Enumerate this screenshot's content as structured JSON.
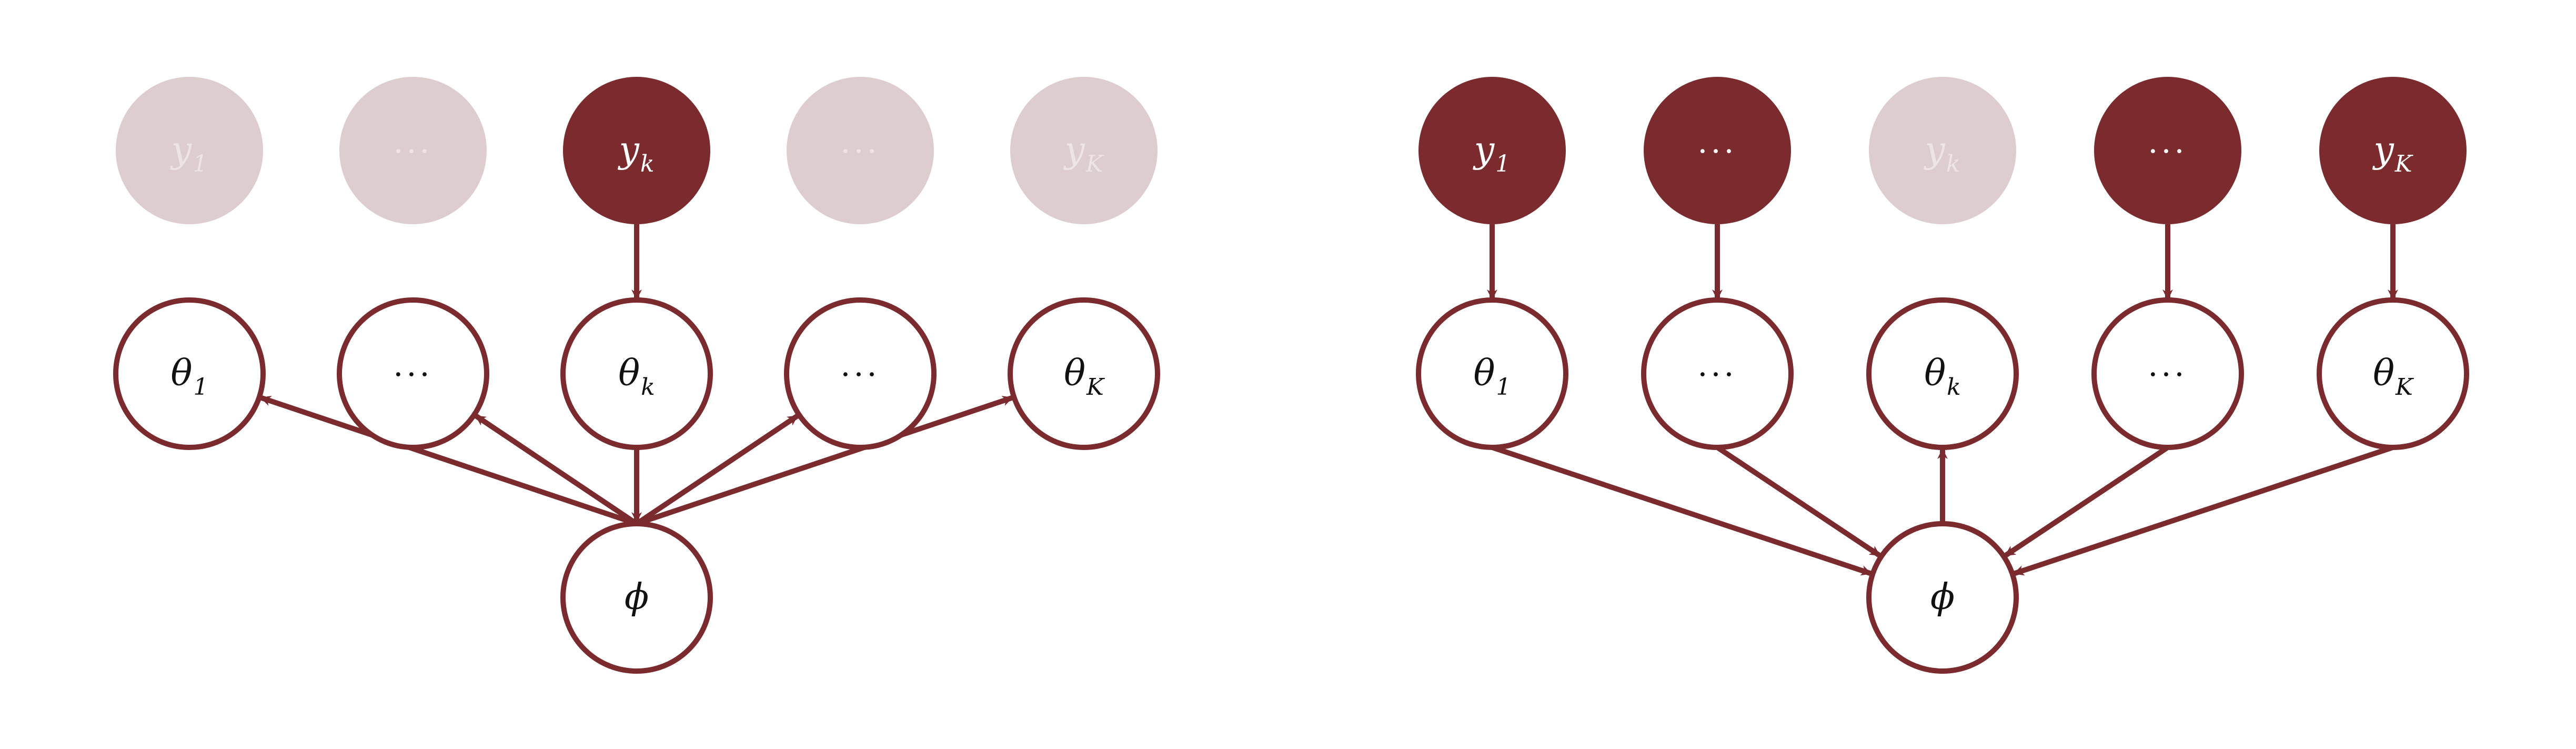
{
  "colors": {
    "node_stroke": "#7b2a2d",
    "observed_fill": "#7b2a2d",
    "faded_fill": "#decdcf",
    "faded_text": "#ede4e5",
    "hidden_fill": "#ffffff",
    "text_dark": "#111111",
    "text_light": "#ffffff",
    "edge": "#7b2a2d"
  },
  "panels": [
    {
      "id": "left",
      "data_nodes": [
        {
          "label": "y",
          "sub": "1",
          "state": "faded"
        },
        {
          "label": "···",
          "sub": "",
          "state": "faded"
        },
        {
          "label": "y",
          "sub": "k",
          "state": "observed"
        },
        {
          "label": "···",
          "sub": "",
          "state": "faded"
        },
        {
          "label": "y",
          "sub": "K",
          "state": "faded"
        }
      ],
      "theta_nodes": [
        {
          "label": "θ",
          "sub": "1"
        },
        {
          "label": "···",
          "sub": ""
        },
        {
          "label": "θ",
          "sub": "k"
        },
        {
          "label": "···",
          "sub": ""
        },
        {
          "label": "θ",
          "sub": "K"
        }
      ],
      "phi_node": {
        "label": "ϕ"
      },
      "data_to_theta_edges": [
        2
      ],
      "phi_edges": [
        {
          "theta": 0,
          "direction": "phi_to_theta"
        },
        {
          "theta": 1,
          "direction": "phi_to_theta"
        },
        {
          "theta": 2,
          "direction": "theta_to_phi"
        },
        {
          "theta": 3,
          "direction": "phi_to_theta"
        },
        {
          "theta": 4,
          "direction": "phi_to_theta"
        }
      ]
    },
    {
      "id": "right",
      "data_nodes": [
        {
          "label": "y",
          "sub": "1",
          "state": "observed"
        },
        {
          "label": "···",
          "sub": "",
          "state": "observed"
        },
        {
          "label": "y",
          "sub": "k",
          "state": "faded"
        },
        {
          "label": "···",
          "sub": "",
          "state": "observed"
        },
        {
          "label": "y",
          "sub": "K",
          "state": "observed"
        }
      ],
      "theta_nodes": [
        {
          "label": "θ",
          "sub": "1"
        },
        {
          "label": "···",
          "sub": ""
        },
        {
          "label": "θ",
          "sub": "k"
        },
        {
          "label": "···",
          "sub": ""
        },
        {
          "label": "θ",
          "sub": "K"
        }
      ],
      "phi_node": {
        "label": "ϕ"
      },
      "data_to_theta_edges": [
        0,
        1,
        3,
        4
      ],
      "phi_edges": [
        {
          "theta": 0,
          "direction": "theta_to_phi"
        },
        {
          "theta": 1,
          "direction": "theta_to_phi"
        },
        {
          "theta": 2,
          "direction": "phi_to_theta"
        },
        {
          "theta": 3,
          "direction": "theta_to_phi"
        },
        {
          "theta": 4,
          "direction": "theta_to_phi"
        }
      ]
    }
  ]
}
